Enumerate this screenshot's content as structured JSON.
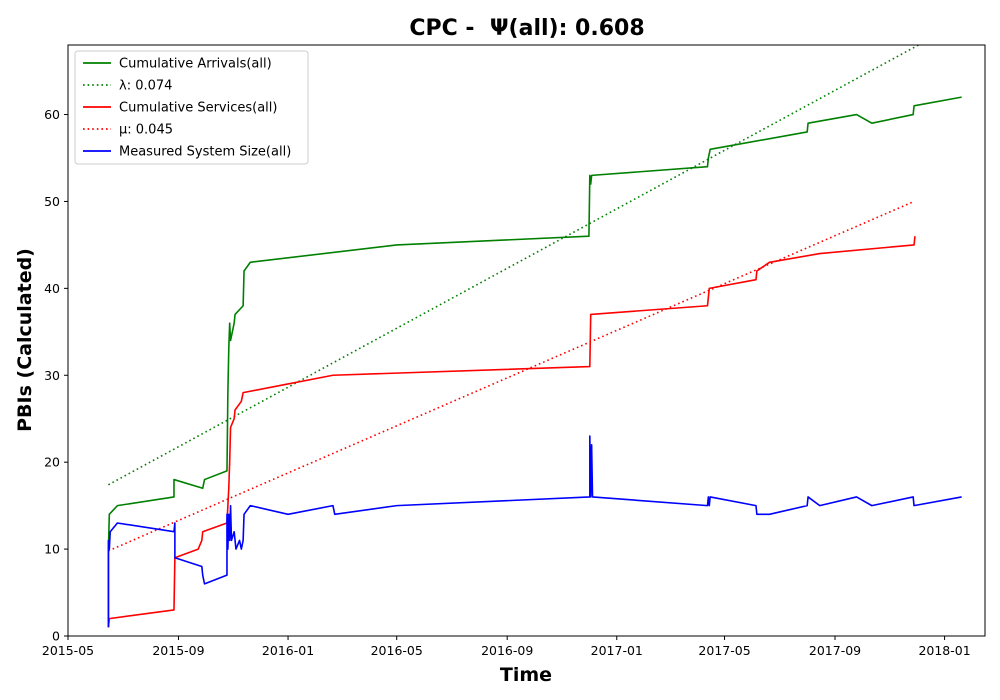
{
  "chart_data": {
    "type": "line",
    "title": "CPC -  Ψ(all): 0.608",
    "xlabel": "Time",
    "ylabel": "PBIs (Calculated)",
    "xlim": [
      "2015-05-01",
      "2018-02-15"
    ],
    "ylim": [
      0,
      68
    ],
    "x_ticks": [
      "2015-05",
      "2015-09",
      "2016-01",
      "2016-05",
      "2016-09",
      "2017-01",
      "2017-05",
      "2017-09",
      "2018-01"
    ],
    "y_ticks": [
      0,
      10,
      20,
      30,
      40,
      50,
      60
    ],
    "grid": false,
    "legend_position": "top-left",
    "series": [
      {
        "name": "Cumulative Arrivals(all)",
        "color": "#008000",
        "style": "solid",
        "points": [
          [
            "2015-06-15",
            1
          ],
          [
            "2015-06-15",
            10
          ],
          [
            "2015-06-16",
            14
          ],
          [
            "2015-06-25",
            15
          ],
          [
            "2015-08-27",
            16
          ],
          [
            "2015-08-27",
            18
          ],
          [
            "2015-09-28",
            17
          ],
          [
            "2015-09-30",
            18
          ],
          [
            "2015-10-25",
            19
          ],
          [
            "2015-10-26",
            28
          ],
          [
            "2015-10-27",
            33
          ],
          [
            "2015-10-28",
            36
          ],
          [
            "2015-10-29",
            34
          ],
          [
            "2015-11-02",
            36
          ],
          [
            "2015-11-03",
            37
          ],
          [
            "2015-11-12",
            38
          ],
          [
            "2015-11-13",
            42
          ],
          [
            "2015-11-20",
            43
          ],
          [
            "2016-05-01",
            45
          ],
          [
            "2016-12-01",
            46
          ],
          [
            "2016-12-02",
            53
          ],
          [
            "2016-12-03",
            52
          ],
          [
            "2016-12-04",
            53
          ],
          [
            "2017-04-12",
            54
          ],
          [
            "2017-04-13",
            55
          ],
          [
            "2017-04-15",
            56
          ],
          [
            "2017-08-01",
            58
          ],
          [
            "2017-08-02",
            59
          ],
          [
            "2017-09-25",
            60
          ],
          [
            "2017-10-12",
            59
          ],
          [
            "2017-11-27",
            60
          ],
          [
            "2017-11-28",
            61
          ],
          [
            "2018-01-20",
            62
          ]
        ]
      },
      {
        "name": "λ: 0.074",
        "color": "#008000",
        "style": "dotted",
        "points": [
          [
            "2015-06-15",
            17.4
          ],
          [
            "2017-12-03",
            68
          ]
        ]
      },
      {
        "name": "Cumulative Services(all)",
        "color": "#ff0000",
        "style": "solid",
        "points": [
          [
            "2015-06-15",
            1
          ],
          [
            "2015-06-16",
            2
          ],
          [
            "2015-08-27",
            3
          ],
          [
            "2015-08-28",
            9
          ],
          [
            "2015-09-23",
            10
          ],
          [
            "2015-09-27",
            11
          ],
          [
            "2015-09-28",
            12
          ],
          [
            "2015-10-25",
            13
          ],
          [
            "2015-10-27",
            17
          ],
          [
            "2015-10-28",
            20
          ],
          [
            "2015-10-29",
            24
          ],
          [
            "2015-11-02",
            25
          ],
          [
            "2015-11-03",
            26
          ],
          [
            "2015-11-10",
            27
          ],
          [
            "2015-11-12",
            28
          ],
          [
            "2016-01-01",
            29
          ],
          [
            "2016-02-20",
            30
          ],
          [
            "2016-12-02",
            31
          ],
          [
            "2016-12-03",
            37
          ],
          [
            "2017-04-12",
            38
          ],
          [
            "2017-04-14",
            40
          ],
          [
            "2017-06-05",
            41
          ],
          [
            "2017-06-06",
            42
          ],
          [
            "2017-06-20",
            43
          ],
          [
            "2017-08-15",
            44
          ],
          [
            "2017-11-28",
            45
          ],
          [
            "2017-11-29",
            46
          ]
        ]
      },
      {
        "name": "μ: 0.045",
        "color": "#ff0000",
        "style": "dotted",
        "points": [
          [
            "2015-06-15",
            9.8
          ],
          [
            "2017-11-28",
            50
          ]
        ]
      },
      {
        "name": "Measured System Size(all)",
        "color": "#0000ff",
        "style": "solid",
        "points": [
          [
            "2015-06-15",
            1
          ],
          [
            "2015-06-15",
            11
          ],
          [
            "2015-06-16",
            10
          ],
          [
            "2015-06-17",
            12
          ],
          [
            "2015-06-25",
            13
          ],
          [
            "2015-08-27",
            12
          ],
          [
            "2015-08-28",
            13
          ],
          [
            "2015-08-28",
            9
          ],
          [
            "2015-09-27",
            8
          ],
          [
            "2015-09-28",
            7
          ],
          [
            "2015-09-30",
            6
          ],
          [
            "2015-10-25",
            7
          ],
          [
            "2015-10-25",
            14
          ],
          [
            "2015-10-26",
            10
          ],
          [
            "2015-10-27",
            14
          ],
          [
            "2015-10-28",
            11
          ],
          [
            "2015-10-29",
            15
          ],
          [
            "2015-10-30",
            11
          ],
          [
            "2015-11-02",
            12
          ],
          [
            "2015-11-04",
            10
          ],
          [
            "2015-11-08",
            11
          ],
          [
            "2015-11-10",
            10
          ],
          [
            "2015-11-12",
            11
          ],
          [
            "2015-11-13",
            14
          ],
          [
            "2015-11-20",
            15
          ],
          [
            "2016-01-01",
            14
          ],
          [
            "2016-02-20",
            15
          ],
          [
            "2016-02-22",
            14
          ],
          [
            "2016-05-01",
            15
          ],
          [
            "2016-12-02",
            16
          ],
          [
            "2016-12-02",
            23
          ],
          [
            "2016-12-03",
            16
          ],
          [
            "2016-12-04",
            22
          ],
          [
            "2016-12-05",
            16
          ],
          [
            "2017-04-12",
            15
          ],
          [
            "2017-04-13",
            16
          ],
          [
            "2017-04-14",
            15
          ],
          [
            "2017-04-15",
            16
          ],
          [
            "2017-06-05",
            15
          ],
          [
            "2017-06-06",
            14
          ],
          [
            "2017-06-20",
            14
          ],
          [
            "2017-08-01",
            15
          ],
          [
            "2017-08-02",
            16
          ],
          [
            "2017-08-15",
            15
          ],
          [
            "2017-09-25",
            16
          ],
          [
            "2017-10-12",
            15
          ],
          [
            "2017-11-27",
            16
          ],
          [
            "2017-11-28",
            15
          ],
          [
            "2018-01-20",
            16
          ]
        ]
      }
    ]
  }
}
